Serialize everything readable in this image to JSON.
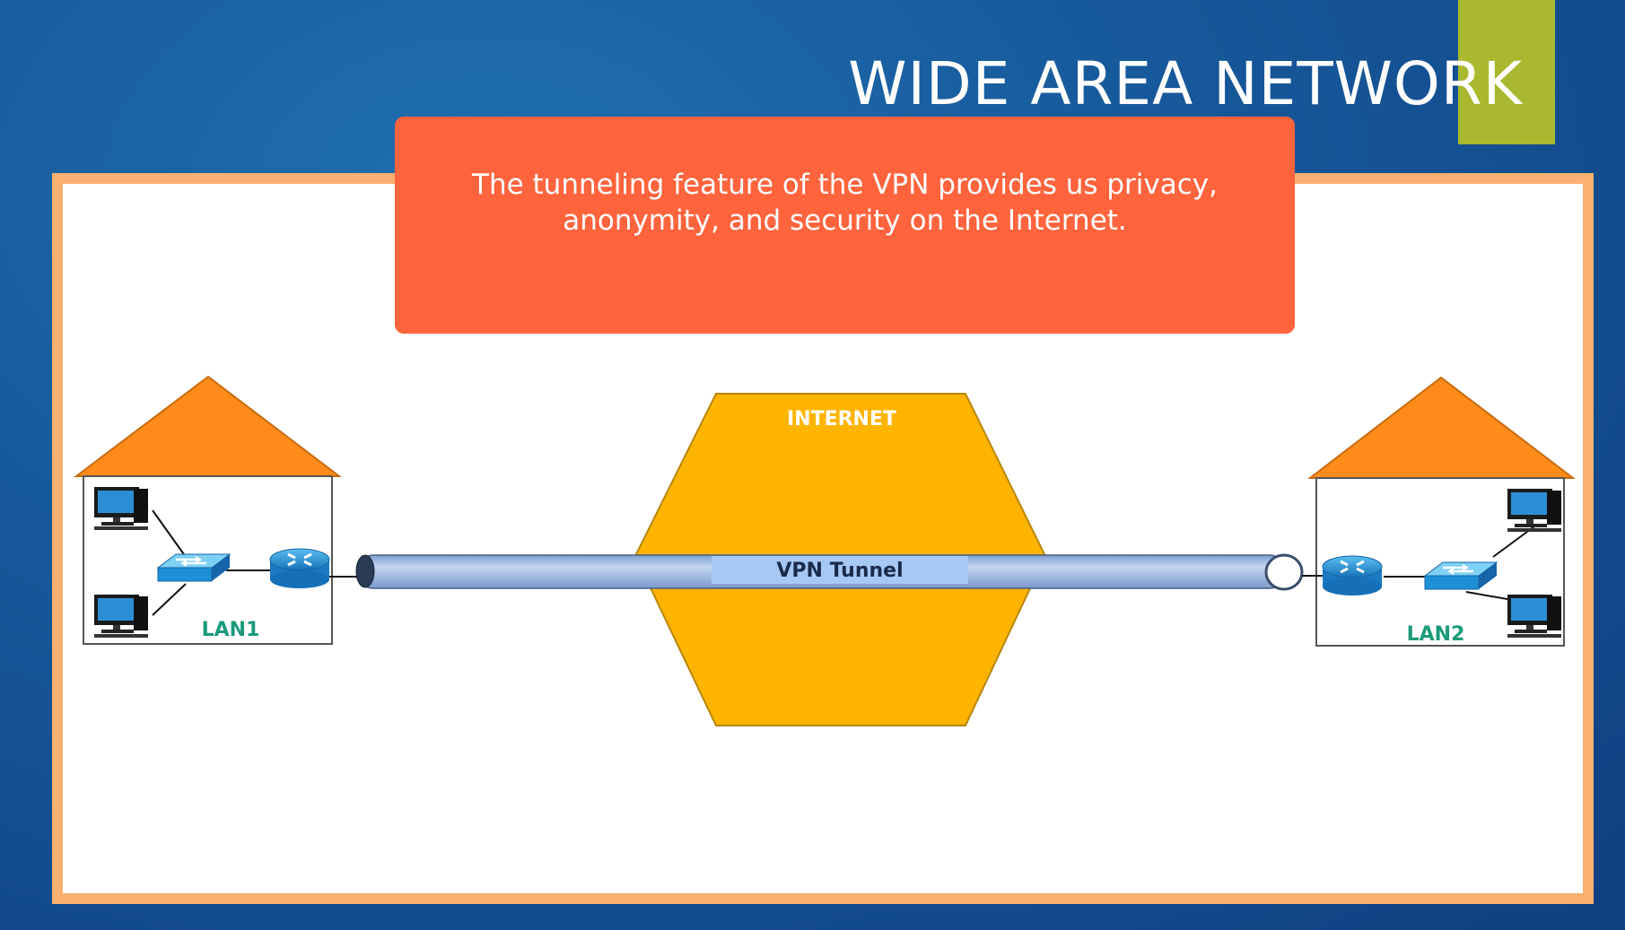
{
  "slide": {
    "title": "WIDE AREA NETWORK",
    "callout_text": "The tunneling feature of the VPN provides us privacy, anonymity, and security on the Internet."
  },
  "diagram": {
    "internet_label": "INTERNET",
    "tunnel_label": "VPN Tunnel",
    "lan_left_label": "LAN1",
    "lan_right_label": "LAN2"
  },
  "colors": {
    "background": "#175a9c",
    "accent": "#a9b82e",
    "frame_border": "#f9b070",
    "callout": "#ff643d",
    "roof": "#ff8c1a",
    "internet": "#ffb400",
    "tunnel": "#9dbbe6",
    "lan_label": "#1a9a7a",
    "switch_router": "#1e90d6"
  },
  "icons": [
    "computer-icon",
    "switch-icon",
    "router-icon",
    "house-roof-icon"
  ]
}
